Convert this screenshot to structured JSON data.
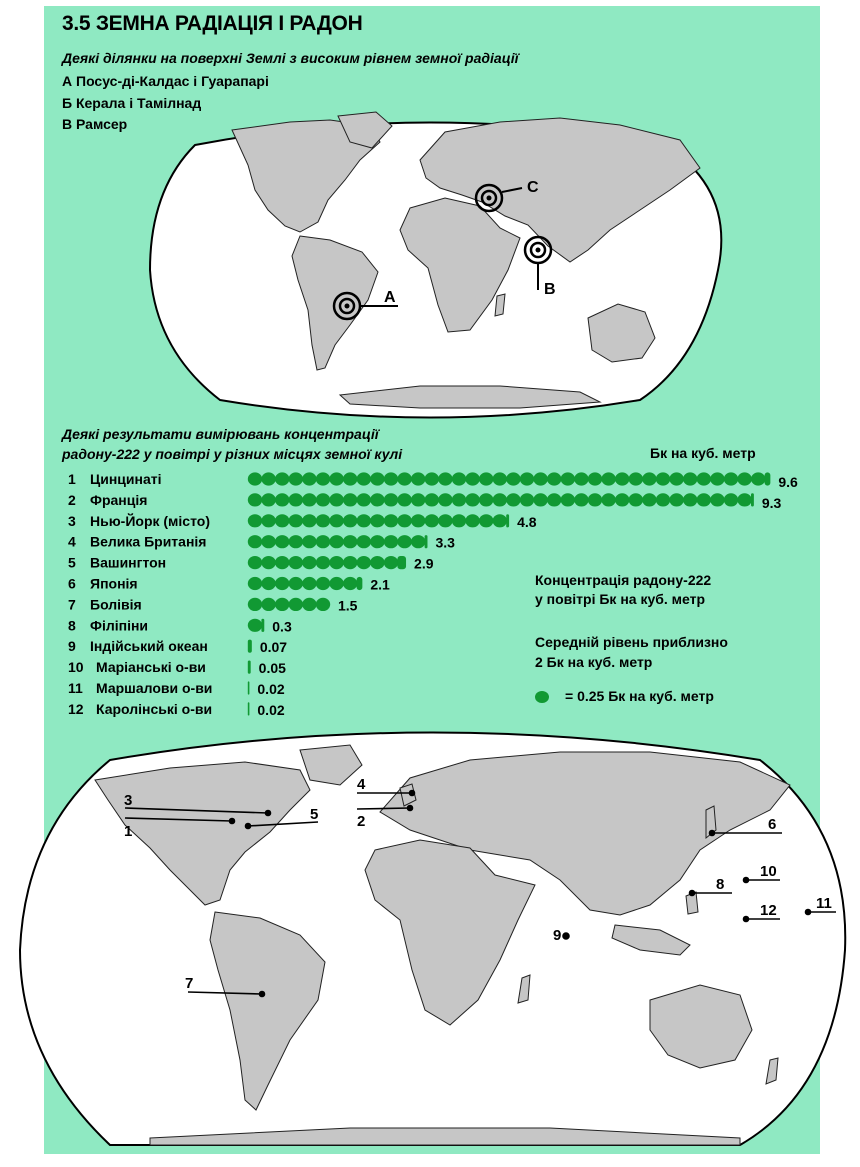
{
  "page": {
    "title": "3.5 ЗЕМНА РАДІАЦІЯ І РАДОН"
  },
  "radiation_map": {
    "caption": "Деякі ділянки на поверхні Землі з високим рівнем земної радіації",
    "legend": [
      "А Посус-ді-Калдас і Гуарапарі",
      "Б Керала і Тамілнад",
      "В Рамсер"
    ],
    "markers": [
      {
        "id": "a",
        "label": "A"
      },
      {
        "id": "b",
        "label": "B"
      },
      {
        "id": "c",
        "label": "C"
      }
    ]
  },
  "radon_chart": {
    "caption_line1": "Деякі результати вимірювань концентрації",
    "caption_line2": "радону-222 у повітрі у різних місцях земної кулі",
    "unit_header": "Бк на куб. метр",
    "note1_line1": "Концентрація радону-222",
    "note1_line2": "у повітрі Бк на куб. метр",
    "note2_line1": "Середній рівень приблизно",
    "note2_line2": "2 Бк на куб. метр",
    "dot_legend": "= 0.25 Бк на куб. метр"
  },
  "chart_data": {
    "type": "bar",
    "title": "Деякі результати вимірювань концентрації радону-222 у повітрі у різних місцях земної кулі",
    "ylabel": "Бк на куб. метр",
    "unit_per_dot": 0.25,
    "categories": [
      "Цинцинаті",
      "Франція",
      "Нью-Йорк (місто)",
      "Велика Британія",
      "Вашингтон",
      "Японія",
      "Болівія",
      "Філіпіни",
      "Індійський океан",
      "Маріанські о-ви",
      "Маршалови о-ви",
      "Каролінські о-ви"
    ],
    "numbers": [
      "1",
      "2",
      "3",
      "4",
      "5",
      "6",
      "7",
      "8",
      "9",
      "10",
      "11",
      "12"
    ],
    "values": [
      9.6,
      9.3,
      4.8,
      3.3,
      2.9,
      2.1,
      1.5,
      0.3,
      0.07,
      0.05,
      0.02,
      0.02
    ],
    "value_labels": [
      "9.6",
      "9.3",
      "4.8",
      "3.3",
      "2.9",
      "2.1",
      "1.5",
      "0.3",
      "0.07",
      "0.05",
      "0.02",
      "0.02"
    ]
  },
  "location_map": {
    "labels": [
      "1",
      "2",
      "3",
      "4",
      "5",
      "6",
      "7",
      "8",
      "9",
      "10",
      "11",
      "12"
    ]
  },
  "colors": {
    "background": "#8fe9c2",
    "land": "#c6c6c6",
    "ocean": "#ffffff",
    "dots": "#119933"
  }
}
